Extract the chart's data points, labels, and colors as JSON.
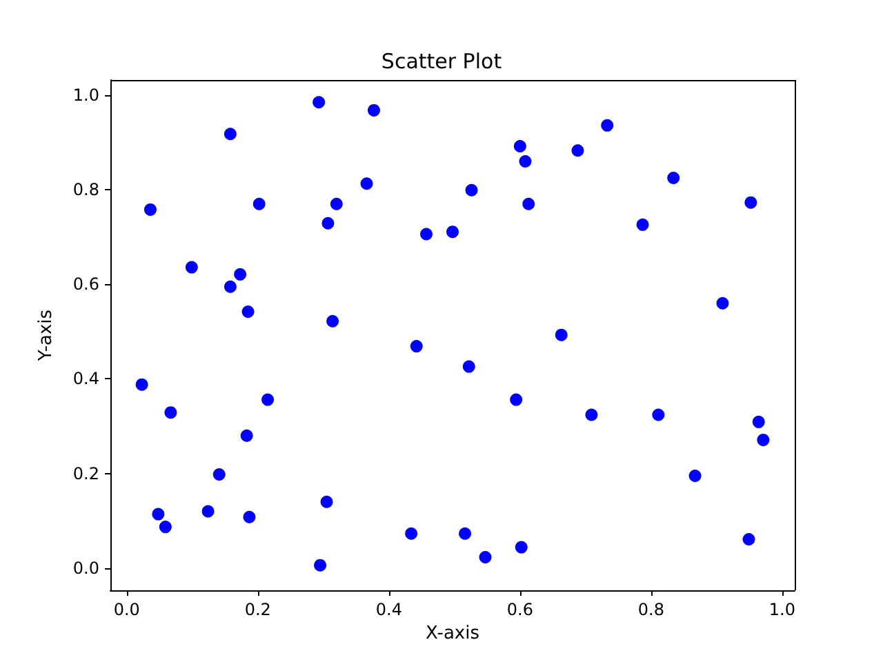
{
  "chart_data": {
    "type": "scatter",
    "title": "Scatter Plot",
    "xlabel": "X-axis",
    "ylabel": "Y-axis",
    "marker": "circle",
    "grid": false,
    "xlim": [
      -0.025,
      1.019
    ],
    "ylim": [
      -0.047,
      1.032
    ],
    "xticks": [
      {
        "value": 0,
        "label": "0.0"
      },
      {
        "value": 0.2,
        "label": "0.2"
      },
      {
        "value": 0.4,
        "label": "0.4"
      },
      {
        "value": 0.6,
        "label": "0.6"
      },
      {
        "value": 0.8,
        "label": "0.8"
      },
      {
        "value": 1,
        "label": "1.0"
      }
    ],
    "yticks": [
      {
        "value": 0,
        "label": "0.0"
      },
      {
        "value": 0.2,
        "label": "0.2"
      },
      {
        "value": 0.4,
        "label": "0.4"
      },
      {
        "value": 0.6,
        "label": "0.6"
      },
      {
        "value": 0.8,
        "label": "0.8"
      },
      {
        "value": 1,
        "label": "1.0"
      }
    ],
    "series": [
      {
        "color": "#0000ff",
        "x": [
          0.293,
          0.377,
          0.158,
          0.6,
          0.733,
          0.688,
          0.608,
          0.366,
          0.834,
          0.526,
          0.036,
          0.202,
          0.32,
          0.952,
          0.307,
          0.613,
          0.787,
          0.457,
          0.497,
          0.099,
          0.173,
          0.158,
          0.185,
          0.909,
          0.314,
          0.663,
          0.442,
          0.023,
          0.522,
          0.067,
          0.215,
          0.594,
          0.709,
          0.811,
          0.183,
          0.964,
          0.971,
          0.141,
          0.867,
          0.305,
          0.124,
          0.048,
          0.187,
          0.059,
          0.434,
          0.516,
          0.949,
          0.547,
          0.602,
          0.295
        ],
        "values": [
          0.985,
          0.968,
          0.918,
          0.892,
          0.936,
          0.883,
          0.86,
          0.813,
          0.825,
          0.799,
          0.758,
          0.77,
          0.77,
          0.773,
          0.729,
          0.77,
          0.726,
          0.706,
          0.711,
          0.636,
          0.621,
          0.595,
          0.542,
          0.56,
          0.522,
          0.493,
          0.469,
          0.388,
          0.426,
          0.329,
          0.356,
          0.356,
          0.324,
          0.324,
          0.28,
          0.309,
          0.271,
          0.198,
          0.195,
          0.14,
          0.12,
          0.114,
          0.108,
          0.087,
          0.073,
          0.073,
          0.061,
          0.023,
          0.044,
          0.006
        ]
      }
    ]
  }
}
